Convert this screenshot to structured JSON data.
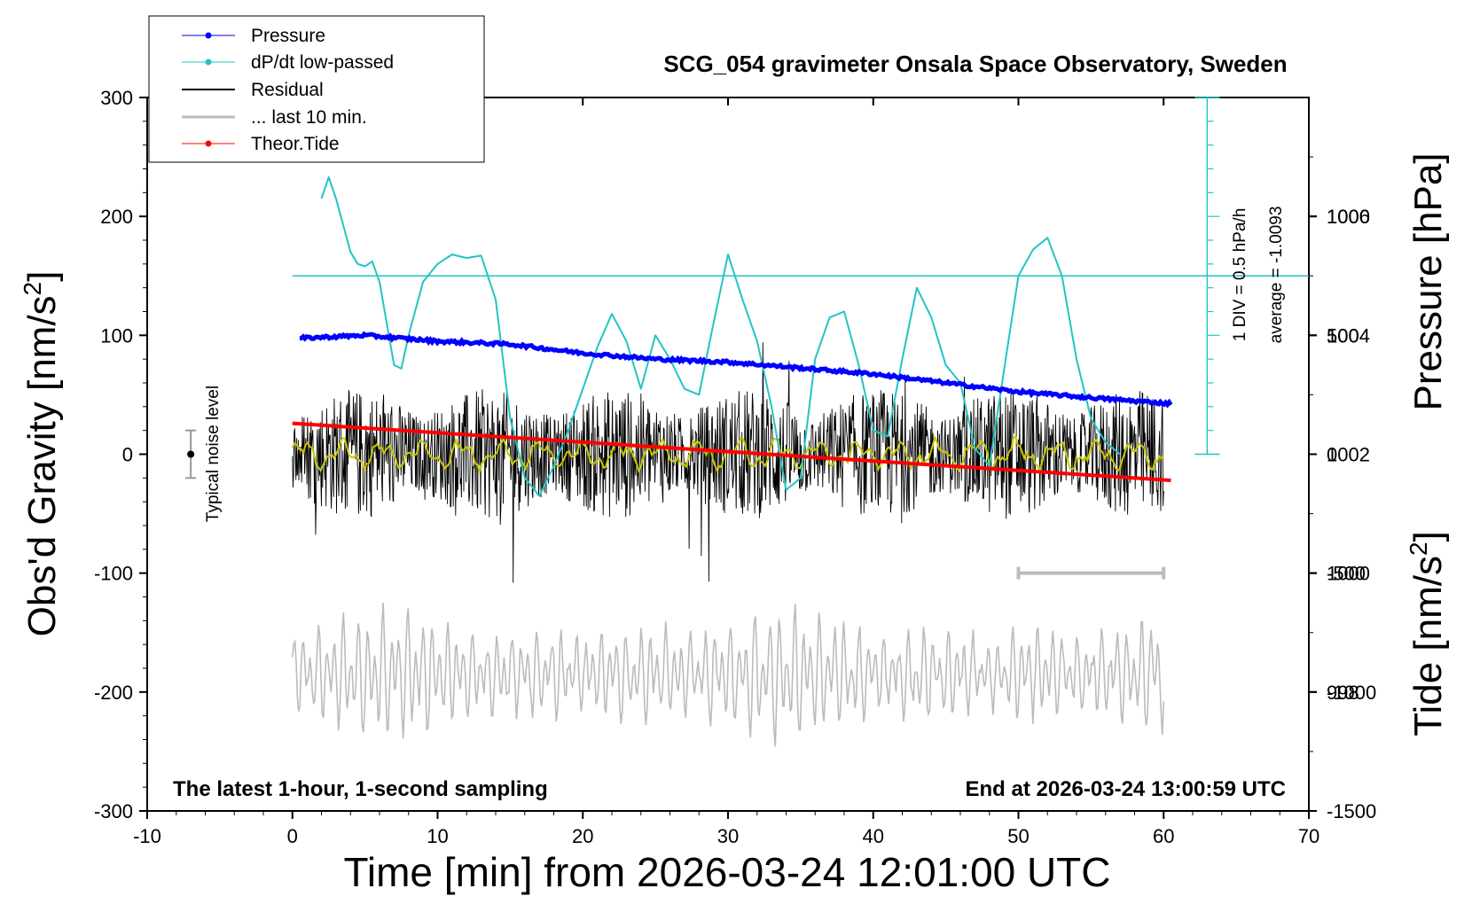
{
  "chart_data": {
    "type": "line",
    "title": "SCG_054 gravimeter Onsala Space Observatory, Sweden",
    "subtitle_left": "The latest 1-hour, 1-second sampling",
    "subtitle_right": "End at 2026-03-24 13:00:59 UTC",
    "xlabel": "Time [min] from 2026-03-24 12:01:00 UTC",
    "ylabel_left_main": "Obs'd Gravity [nm/s",
    "ylabel_left_sup": "2",
    "ylabel_left_end": "]",
    "ylabel_right_pressure": "Pressure [hPa]",
    "ylabel_right_tide_main": "Tide [nm/s",
    "ylabel_right_tide_sup": "2",
    "ylabel_right_tide_end": "]",
    "xlim": [
      -10,
      70
    ],
    "ylim_gravity": [
      -300,
      300
    ],
    "ylim_pressure_axis": [
      996,
      1008
    ],
    "ylim_tide_axis": [
      -1500,
      1500
    ],
    "x_ticks": [
      "-10",
      "0",
      "10",
      "20",
      "30",
      "40",
      "50",
      "60",
      "70"
    ],
    "y_ticks_left": [
      "300",
      "200",
      "100",
      "0",
      "-100",
      "-200",
      "-300"
    ],
    "y_ticks_pressure": [
      "1006",
      "1004",
      "1002",
      "1000",
      "998"
    ],
    "y_ticks_tide": [
      "1000",
      "500",
      "0",
      "-500",
      "-1000",
      "-1500"
    ],
    "legend": [
      {
        "label": "Pressure",
        "color": "#0000ff",
        "marker": true
      },
      {
        "label": "dP/dt low-passed",
        "color": "#22c4c4",
        "marker": true
      },
      {
        "label": "Residual",
        "color": "#000000",
        "marker": false
      },
      {
        "label": "... last 10 min.",
        "color": "#bbbbbb",
        "marker": false
      },
      {
        "label": "Theor.Tide",
        "color": "#ff0000",
        "marker": true
      }
    ],
    "noise_label": "Typical noise level",
    "noise_level": {
      "x": -7,
      "center": 0,
      "half_range": 20
    },
    "dpdt_scale_label": "1 DIV = 0.5 hPa/h",
    "dpdt_average_label": "average = -1.0093",
    "dpdt_reference_gravity": 150,
    "last10_bar": {
      "x_start": 50,
      "x_end": 60,
      "gravity": -100
    },
    "series": [
      {
        "name": "Pressure",
        "color": "#0000ff",
        "unit": "hPa",
        "x": [
          0.5,
          5,
          10,
          15,
          20,
          25,
          30,
          35,
          40,
          45,
          50,
          55,
          60.5
        ],
        "values": [
          1003.95,
          1004.0,
          1003.9,
          1003.85,
          1003.7,
          1003.6,
          1003.55,
          1003.45,
          1003.35,
          1003.2,
          1003.05,
          1002.95,
          1002.85
        ]
      },
      {
        "name": "dP/dt low-passed",
        "color": "#22c4c4",
        "unit": "gravity-axis",
        "x": [
          2,
          2.5,
          3,
          4,
          4.5,
          5,
          5.5,
          6,
          7,
          7.5,
          8,
          9,
          10,
          11,
          12,
          13,
          14,
          15,
          16,
          17,
          18,
          19,
          20,
          21,
          22,
          23,
          24,
          25,
          26,
          27,
          28,
          29,
          30,
          31,
          32,
          33,
          34,
          35,
          36,
          37,
          38,
          39,
          40,
          41,
          42,
          43,
          44,
          45,
          46,
          47,
          48,
          49,
          50,
          51,
          52,
          53,
          54,
          55,
          56,
          57
        ],
        "values": [
          215,
          233,
          215,
          170,
          160,
          158,
          162,
          145,
          75,
          72,
          100,
          145,
          160,
          168,
          165,
          167,
          130,
          30,
          -20,
          -35,
          -10,
          20,
          55,
          90,
          118,
          95,
          55,
          100,
          80,
          55,
          50,
          110,
          168,
          130,
          95,
          40,
          -30,
          -20,
          80,
          115,
          120,
          75,
          20,
          15,
          80,
          140,
          115,
          75,
          60,
          5,
          -10,
          70,
          150,
          172,
          182,
          150,
          80,
          30,
          10,
          0
        ]
      },
      {
        "name": "Residual",
        "color": "#000000",
        "amplitude": 50,
        "x_range": [
          0,
          60
        ]
      },
      {
        "name": "Residual low-passed",
        "color": "#c8c800",
        "amplitude": 8,
        "x_range": [
          0,
          60
        ]
      },
      {
        "name": "... last 10 min.",
        "color": "#bbbbbb",
        "amplitude": 45,
        "offset": -185,
        "x_range": [
          0,
          60
        ]
      },
      {
        "name": "Theor.Tide",
        "color": "#ff0000",
        "unit": "nm/s2",
        "x": [
          0,
          60.5
        ],
        "values": [
          130,
          -110
        ]
      }
    ]
  }
}
